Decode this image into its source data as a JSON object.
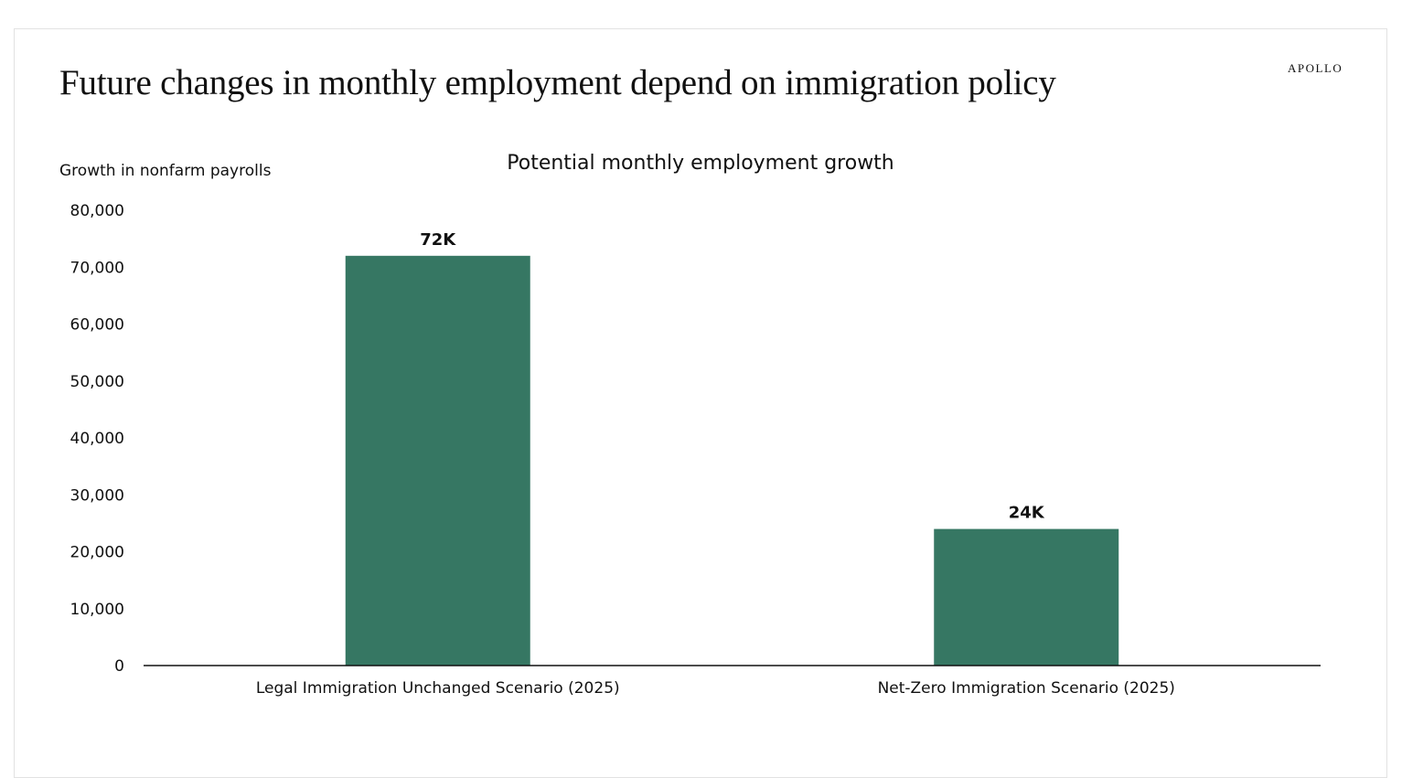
{
  "header": {
    "title": "Future changes in monthly employment depend on immigration policy",
    "brand": "APOLLO"
  },
  "chart_data": {
    "type": "bar",
    "title": "Potential monthly employment growth",
    "ylabel": "Growth in nonfarm payrolls",
    "xlabel": "",
    "categories": [
      "Legal Immigration Unchanged Scenario (2025)",
      "Net-Zero Immigration Scenario (2025)"
    ],
    "values": [
      72000,
      24000
    ],
    "data_labels": [
      "72K",
      "24K"
    ],
    "ylim": [
      0,
      80000
    ],
    "yticks": [
      0,
      10000,
      20000,
      30000,
      40000,
      50000,
      60000,
      70000,
      80000
    ],
    "ytick_labels": [
      "0",
      "10,000",
      "20,000",
      "30,000",
      "40,000",
      "50,000",
      "60,000",
      "70,000",
      "80,000"
    ],
    "grid": false,
    "legend": "none",
    "bar_color": "#367763"
  }
}
